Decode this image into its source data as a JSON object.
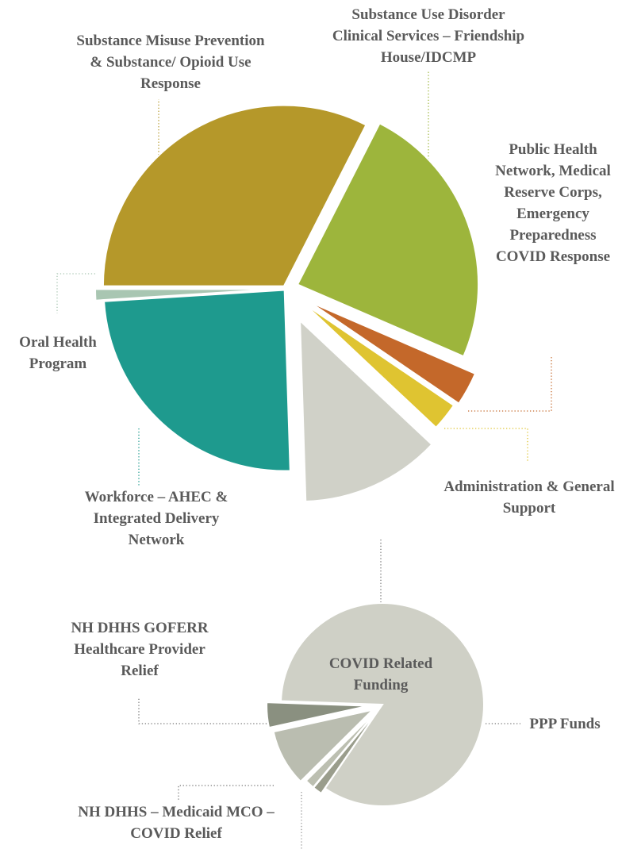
{
  "chart_data": [
    {
      "type": "pie",
      "categories": [
        "Substance Misuse Prevention & Substance/ Opioid Use Response",
        "Substance Use Disorder Clinical Services – Friendship House/IDCMP",
        "Public Health Network, Medical Reserve Corps, Emergency Preparedness COVID Response",
        "Administration & General Support",
        null,
        "Workforce – AHEC & Integrated Delivery Network",
        "Oral Health Program"
      ],
      "values": [
        32.5,
        24,
        3,
        2.5,
        12.5,
        24.5,
        1
      ],
      "colors": [
        "#b5982a",
        "#9db53c",
        "#c4682a",
        "#dfc431",
        "#d0d1c8",
        "#1e9a8e",
        "#a9c6b2"
      ]
    },
    {
      "type": "pie",
      "title": "COVID Related Funding",
      "categories": [
        "PPP Funds",
        null,
        null,
        "NH DHHS – Medicaid MCO – COVID Relief",
        "NH DHHS GOFERR Healthcare Provider Relief"
      ],
      "values": [
        84,
        1.5,
        1.5,
        9,
        4
      ],
      "colors": [
        "#cfd0c6",
        "#9a9d8c",
        "#bcbfb1",
        "#babdb0",
        "#8a9080"
      ]
    }
  ]
}
